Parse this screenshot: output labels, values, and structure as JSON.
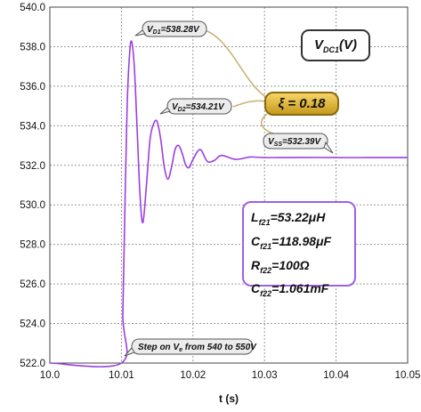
{
  "chart_data": {
    "type": "line",
    "title": "",
    "xlabel": "t (s)",
    "ylabel": "",
    "xlim": [
      10.0,
      10.05
    ],
    "ylim": [
      522.0,
      540.0
    ],
    "x_ticks": [
      "10.0",
      "10.01",
      "10.02",
      "10.03",
      "10.04",
      "10.05"
    ],
    "y_ticks": [
      "522.0",
      "524.0",
      "526.0",
      "528.0",
      "530.0",
      "532.0",
      "534.0",
      "536.0",
      "538.0",
      "540.0"
    ],
    "grid": true,
    "line_color": "#9b3fe0",
    "series": [
      {
        "name": "V_DC1(V)",
        "x": [
          10.0,
          10.01,
          10.0102,
          10.0105,
          10.0108,
          10.0111,
          10.0114,
          10.0118,
          10.0122,
          10.0126,
          10.013,
          10.0135,
          10.014,
          10.0145,
          10.015,
          10.0155,
          10.016,
          10.0165,
          10.017,
          10.0175,
          10.018,
          10.0185,
          10.019,
          10.0195,
          10.02,
          10.021,
          10.022,
          10.023,
          10.024,
          10.026,
          10.028,
          10.03,
          10.035,
          10.04,
          10.045,
          10.05
        ],
        "values": [
          522.0,
          522.0,
          524.5,
          530.0,
          535.0,
          537.4,
          538.28,
          537.0,
          533.8,
          530.5,
          529.1,
          531.0,
          533.3,
          534.1,
          534.21,
          533.3,
          531.9,
          531.3,
          531.9,
          532.8,
          533.0,
          532.6,
          532.0,
          531.9,
          532.3,
          532.8,
          532.2,
          532.25,
          532.5,
          532.3,
          532.42,
          532.39,
          532.4,
          532.39,
          532.39,
          532.39
        ]
      }
    ]
  },
  "legend_label": "V",
  "legend_sub": "DC1",
  "legend_suffix": "(V)",
  "damping_label": "ξ = 0.18",
  "callouts": {
    "vd1_prefix": "V",
    "vd1_sub": "D1",
    "vd1_value": "=538.28V",
    "vd2_prefix": "V",
    "vd2_sub": "D2",
    "vd2_value": "=534.21V",
    "vss_prefix": "V",
    "vss_sub": "SS",
    "vss_value": "=532.39V",
    "step_prefix": "Step on V",
    "step_sub": "e",
    "step_suffix": " from 540 to 550V"
  },
  "params": [
    {
      "sym": "L",
      "sub": "f21",
      "val": "=53.22μH"
    },
    {
      "sym": "C",
      "sub": "f21",
      "val": "=118.98μF"
    },
    {
      "sym": "R",
      "sub": "f22",
      "val": "=100Ω"
    },
    {
      "sym": "C",
      "sub": "f22",
      "val": "=1.061mF"
    }
  ]
}
